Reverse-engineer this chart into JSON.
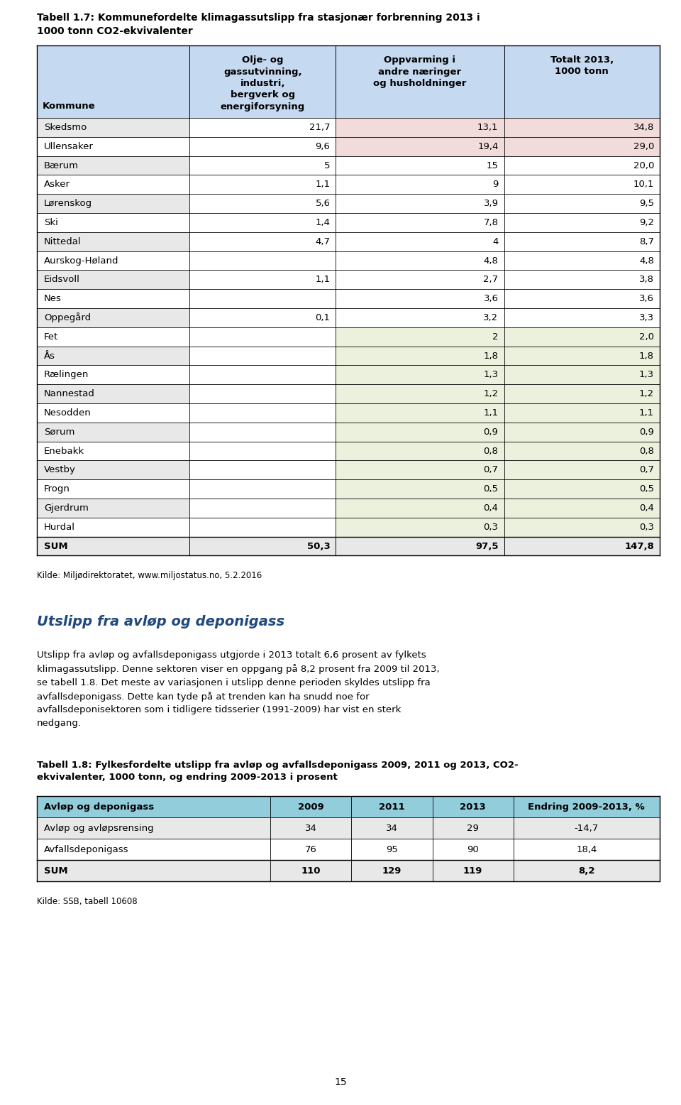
{
  "title": "Tabell 1.7: Kommunefordelte klimagassutslipp fra stasjonær forbrenning 2013 i\n1000 tonn CO2-ekvivalenter",
  "col_headers": [
    "Kommune",
    "Olje- og\ngassutvinning,\nindustri,\nbergverk og\nenergiforsyning",
    "Oppvarming i\nandre næringer\nog husholdninger",
    "Totalt 2013,\n1000 tonn"
  ],
  "rows": [
    [
      "Skedsmo",
      "21,7",
      "13,1",
      "34,8",
      "pink",
      "pink"
    ],
    [
      "Ullensaker",
      "9,6",
      "19,4",
      "29,0",
      "pink",
      "pink"
    ],
    [
      "Bærum",
      "5",
      "15",
      "20,0",
      "white",
      "white"
    ],
    [
      "Asker",
      "1,1",
      "9",
      "10,1",
      "white",
      "white"
    ],
    [
      "Lørenskog",
      "5,6",
      "3,9",
      "9,5",
      "white",
      "white"
    ],
    [
      "Ski",
      "1,4",
      "7,8",
      "9,2",
      "white",
      "white"
    ],
    [
      "Nittedal",
      "4,7",
      "4",
      "8,7",
      "white",
      "white"
    ],
    [
      "Aurskog-Høland",
      "",
      "4,8",
      "4,8",
      "white",
      "white"
    ],
    [
      "Eidsvoll",
      "1,1",
      "2,7",
      "3,8",
      "white",
      "white"
    ],
    [
      "Nes",
      "",
      "3,6",
      "3,6",
      "white",
      "white"
    ],
    [
      "Oppegård",
      "0,1",
      "3,2",
      "3,3",
      "white",
      "white"
    ],
    [
      "Fet",
      "",
      "2",
      "2,0",
      "lightgreen",
      "lightgreen"
    ],
    [
      "Ås",
      "",
      "1,8",
      "1,8",
      "lightgreen",
      "lightgreen"
    ],
    [
      "Rælingen",
      "",
      "1,3",
      "1,3",
      "lightgreen",
      "lightgreen"
    ],
    [
      "Nannestad",
      "",
      "1,2",
      "1,2",
      "lightgreen",
      "lightgreen"
    ],
    [
      "Nesodden",
      "",
      "1,1",
      "1,1",
      "lightgreen",
      "lightgreen"
    ],
    [
      "Sørum",
      "",
      "0,9",
      "0,9",
      "lightgreen",
      "lightgreen"
    ],
    [
      "Enebakk",
      "",
      "0,8",
      "0,8",
      "lightgreen",
      "lightgreen"
    ],
    [
      "Vestby",
      "",
      "0,7",
      "0,7",
      "lightgreen",
      "lightgreen"
    ],
    [
      "Frogn",
      "",
      "0,5",
      "0,5",
      "lightgreen",
      "lightgreen"
    ],
    [
      "Gjerdrum",
      "",
      "0,4",
      "0,4",
      "lightgreen",
      "lightgreen"
    ],
    [
      "Hurdal",
      "",
      "0,3",
      "0,3",
      "lightgreen",
      "lightgreen"
    ]
  ],
  "sum_row": [
    "SUM",
    "50,3",
    "97,5",
    "147,8"
  ],
  "source": "Kilde: Miljødirektoratet, www.miljostatus.no, 5.2.2016",
  "section_title": "Utslipp fra avløp og deponigass",
  "section_text": "Utslipp fra avløp og avfallsdeponigass utgjorde i 2013 totalt 6,6 prosent av fylkets\nklimagassutslipp. Denne sektoren viser en oppgang på 8,2 prosent fra 2009 til 2013,\nse tabell 1.8. Det meste av variasjonen i utslipp denne perioden skyldes utslipp fra\navfallsdeponigass. Dette kan tyde på at trenden kan ha snudd noe for\navfallsdeponisektoren som i tidligere tidsserier (1991-2009) har vist en sterk\nnedgang.",
  "table2_title": "Tabell 1.8: Fylkesfordelte utslipp fra avløp og avfallsdeponigass 2009, 2011 og 2013, CO2-\nekvivalenter, 1000 tonn, og endring 2009-2013 i prosent",
  "table2_col_headers": [
    "Avløp og deponigass",
    "2009",
    "2011",
    "2013",
    "Endring 2009-2013, %"
  ],
  "table2_rows": [
    [
      "Avløp og avløpsrensing",
      "34",
      "34",
      "29",
      "-14,7"
    ],
    [
      "Avfallsdeponigass",
      "76",
      "95",
      "90",
      "18,4"
    ]
  ],
  "table2_sum_row": [
    "SUM",
    "110",
    "129",
    "119",
    "8,2"
  ],
  "table2_source": "Kilde: SSB, tabell 10608",
  "page_number": "15",
  "header_bg": "#C5D9F1",
  "row_alt_bg": "#E8E8E8",
  "pink_bg": "#F2DCDB",
  "green_bg": "#EBF1DD",
  "table2_header_bg": "#92CDDC"
}
